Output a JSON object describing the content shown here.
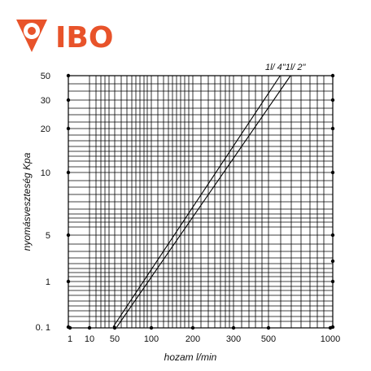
{
  "brand": {
    "name": "IBO",
    "color": "#e8532a"
  },
  "chart_data": {
    "type": "line",
    "title": "",
    "xlabel": "hozam l/min",
    "ylabel": "nyomásveszteség Kpa",
    "x_ticks": [
      "1",
      "10",
      "50",
      "100",
      "200",
      "300",
      "500",
      "1000"
    ],
    "y_ticks": [
      "0. 1",
      "1",
      "5",
      "10",
      "20",
      "30",
      "50"
    ],
    "grid": true,
    "series": [
      {
        "name": "1l/ 4\"",
        "x": [
          45,
          570
        ],
        "y": [
          0.1,
          50
        ]
      },
      {
        "name": "1l/ 2\"",
        "x": [
          52,
          640
        ],
        "y": [
          0.1,
          50
        ]
      }
    ]
  }
}
